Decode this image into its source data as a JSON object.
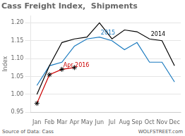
{
  "chart_data": {
    "type": "line",
    "title": "Cass Freight Index,  Shipments",
    "ylabel": "Index",
    "categories": [
      "Jan",
      "Feb",
      "Mar",
      "Apr",
      "May",
      "Jun",
      "Jul",
      "Aug",
      "Sep",
      "Oct",
      "Nov",
      "Dec"
    ],
    "series": [
      {
        "color": "#000000",
        "values": [
          1.0,
          1.08,
          1.145,
          1.155,
          1.16,
          1.2,
          1.155,
          1.18,
          1.175,
          1.155,
          1.15,
          1.08
        ]
      },
      {
        "color": "#1a7abf",
        "values": [
          1.025,
          1.08,
          1.09,
          1.135,
          1.155,
          1.16,
          1.15,
          1.125,
          1.145,
          1.09,
          1.09,
          1.035
        ]
      },
      {
        "color": "#cc0000",
        "marker": "star",
        "values": [
          0.975,
          1.055,
          1.07,
          1.075,
          null,
          null,
          null,
          null,
          null,
          null,
          null,
          null
        ]
      }
    ],
    "ylim": [
      0.95,
      1.22
    ],
    "yticks": [
      0.95,
      {
        "value": 1,
        "label": "1.00"
      },
      1.05,
      {
        "value": 1.1,
        "label": "1.10"
      },
      1.15,
      {
        "value": 1.2,
        "label": "1.20"
      }
    ],
    "grid": true,
    "annotations": [
      {
        "text": "2014",
        "x": "Oct",
        "y": 1.155,
        "color": "#000000"
      },
      {
        "text": "2015",
        "x": "Jun",
        "y": 1.16,
        "color": "#1a7abf"
      },
      {
        "text": "Apr 2016",
        "x": "Mar",
        "y": 1.07,
        "color": "#cc0000"
      }
    ],
    "sources": [
      "Source of Data: Cass",
      "WOLFSTREET.com"
    ]
  }
}
